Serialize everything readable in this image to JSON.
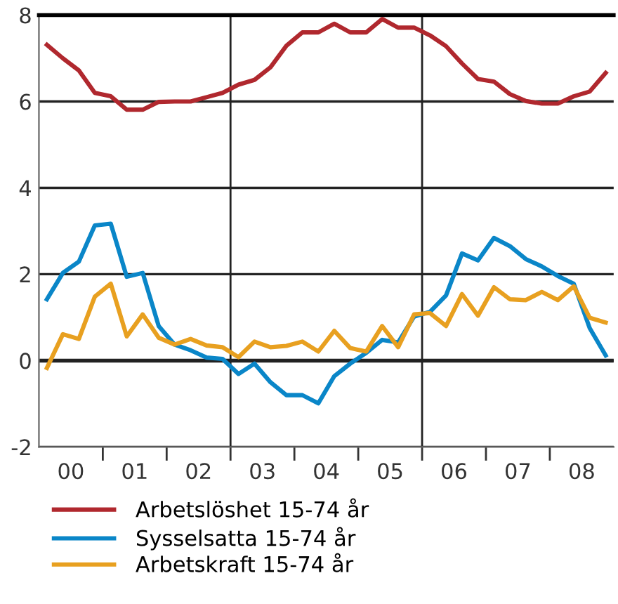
{
  "chart_data": {
    "type": "line",
    "x": [
      -0.375,
      -0.125,
      0.125,
      0.375,
      0.625,
      0.875,
      1.125,
      1.375,
      1.625,
      1.875,
      2.125,
      2.375,
      2.625,
      2.875,
      3.125,
      3.375,
      3.625,
      3.875,
      4.125,
      4.375,
      4.625,
      4.875,
      5.125,
      5.375,
      5.625,
      5.875,
      6.125,
      6.375,
      6.625,
      6.875,
      7.125,
      7.375,
      7.625,
      7.875,
      8.125,
      8.375
    ],
    "series": [
      {
        "name": "Arbetslöshet 15-74 år",
        "color": "#b0282e",
        "values": [
          7.31,
          7.0,
          6.72,
          6.2,
          6.12,
          5.81,
          5.81,
          5.99,
          6.0,
          6.0,
          6.1,
          6.2,
          6.39,
          6.5,
          6.79,
          7.29,
          7.6,
          7.6,
          7.8,
          7.6,
          7.6,
          7.91,
          7.71,
          7.71,
          7.53,
          7.28,
          6.88,
          6.52,
          6.46,
          6.17,
          6.01,
          5.95,
          5.95,
          6.12,
          6.23,
          6.66
        ]
      },
      {
        "name": "Sysselsatta 15-74 år",
        "color": "#0a86c8",
        "values": [
          1.42,
          2.03,
          2.29,
          3.13,
          3.17,
          1.94,
          2.03,
          0.8,
          0.37,
          0.24,
          0.07,
          0.04,
          -0.31,
          -0.07,
          -0.5,
          -0.8,
          -0.8,
          -0.99,
          -0.36,
          -0.07,
          0.18,
          0.48,
          0.42,
          1.02,
          1.13,
          1.51,
          2.48,
          2.32,
          2.84,
          2.65,
          2.35,
          2.18,
          1.96,
          1.78,
          0.75,
          0.12
        ]
      },
      {
        "name": "Arbetskraft 15-74 år",
        "color": "#e8a020",
        "values": [
          -0.17,
          0.61,
          0.5,
          1.48,
          1.78,
          0.56,
          1.07,
          0.53,
          0.37,
          0.5,
          0.35,
          0.31,
          0.08,
          0.44,
          0.31,
          0.34,
          0.44,
          0.21,
          0.69,
          0.29,
          0.21,
          0.8,
          0.31,
          1.07,
          1.1,
          0.8,
          1.54,
          1.04,
          1.7,
          1.42,
          1.4,
          1.59,
          1.4,
          1.72,
          0.99,
          0.88
        ]
      }
    ],
    "xlim": [
      -0.5,
      8.5
    ],
    "xticks": [
      {
        "value": 0,
        "label": "00"
      },
      {
        "value": 0.5,
        "label": null
      },
      {
        "value": 1,
        "label": "01"
      },
      {
        "value": 1.5,
        "label": null
      },
      {
        "value": 2,
        "label": "02"
      },
      {
        "value": 2.5,
        "label": null
      },
      {
        "value": 3,
        "label": "03"
      },
      {
        "value": 3.5,
        "label": null
      },
      {
        "value": 4,
        "label": "04"
      },
      {
        "value": 4.5,
        "label": null
      },
      {
        "value": 5,
        "label": "05"
      },
      {
        "value": 5.5,
        "label": null
      },
      {
        "value": 6,
        "label": "06"
      },
      {
        "value": 6.5,
        "label": null
      },
      {
        "value": 7,
        "label": "07"
      },
      {
        "value": 7.5,
        "label": null
      },
      {
        "value": 8,
        "label": "08"
      }
    ],
    "ylim": [
      -2,
      8
    ],
    "yticks": [
      -2,
      0,
      2,
      4,
      6,
      8
    ],
    "ref_lines": [
      {
        "axis": "x",
        "value": 2.5,
        "label": null,
        "color": "#222222"
      },
      {
        "axis": "x",
        "value": 5.5,
        "label": null,
        "color": "#222222"
      },
      {
        "axis": "y",
        "value": 0,
        "label": null,
        "color": "#222222"
      }
    ],
    "grid": "y",
    "legend": "bottom",
    "line_style": "solid"
  }
}
